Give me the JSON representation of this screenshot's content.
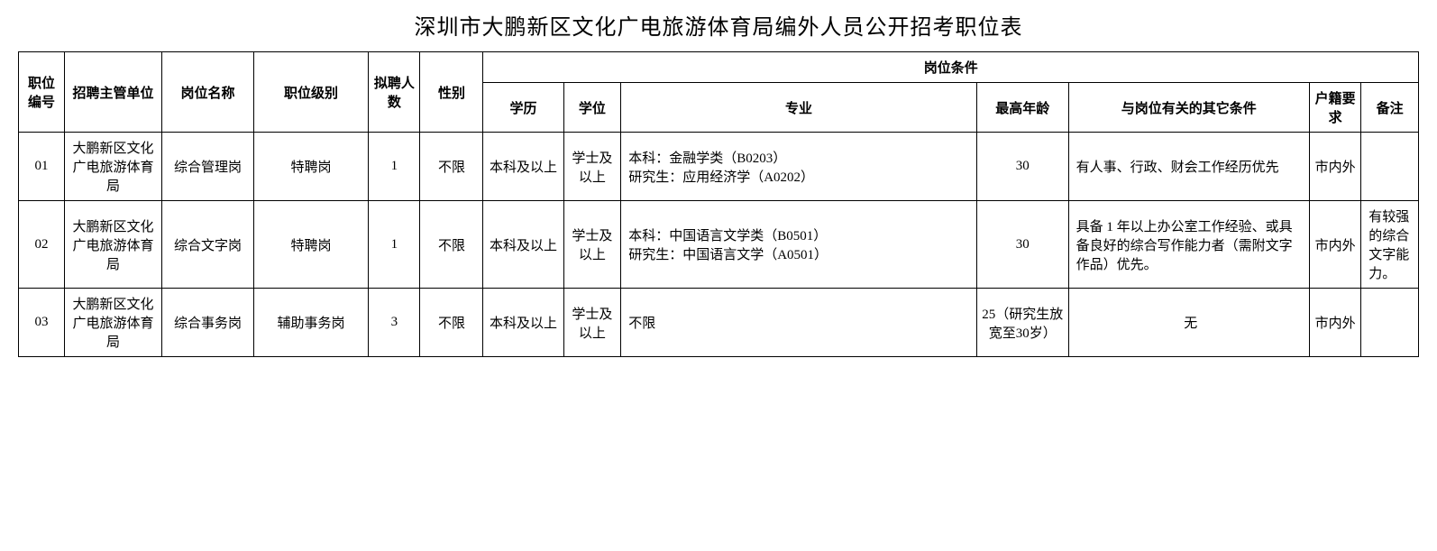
{
  "title": "深圳市大鹏新区文化广电旅游体育局编外人员公开招考职位表",
  "headers": {
    "id": "职位编号",
    "dept": "招聘主管单位",
    "pos": "岗位名称",
    "level": "职位级别",
    "count": "拟聘人数",
    "gender": "性别",
    "group": "岗位条件",
    "edu": "学历",
    "degree": "学位",
    "major": "专业",
    "age": "最高年龄",
    "other": "与岗位有关的其它条件",
    "huji": "户籍要求",
    "note": "备注"
  },
  "rows": [
    {
      "id": "01",
      "dept": "大鹏新区文化广电旅游体育局",
      "pos": "综合管理岗",
      "level": "特聘岗",
      "count": "1",
      "gender": "不限",
      "edu": "本科及以上",
      "degree": "学士及以上",
      "major": "本科：金融学类（B0203）\n研究生：应用经济学（A0202）",
      "age": "30",
      "other": "有人事、行政、财会工作经历优先",
      "huji": "市内外",
      "note": ""
    },
    {
      "id": "02",
      "dept": "大鹏新区文化广电旅游体育局",
      "pos": "综合文字岗",
      "level": "特聘岗",
      "count": "1",
      "gender": "不限",
      "edu": "本科及以上",
      "degree": "学士及以上",
      "major": "本科：中国语言文学类（B0501）\n研究生：中国语言文学（A0501）",
      "age": "30",
      "other": "具备 1 年以上办公室工作经验、或具备良好的综合写作能力者（需附文字作品）优先。",
      "huji": "市内外",
      "note": "有较强的综合文字能力。"
    },
    {
      "id": "03",
      "dept": "大鹏新区文化广电旅游体育局",
      "pos": "综合事务岗",
      "level": "辅助事务岗",
      "count": "3",
      "gender": "不限",
      "edu": "本科及以上",
      "degree": "学士及以上",
      "major": "不限",
      "age": "25（研究生放宽至30岁）",
      "other": "无",
      "huji": "市内外",
      "note": ""
    }
  ],
  "styling": {
    "title_fontsize": 24,
    "cell_fontsize": 15,
    "border_color": "#000000",
    "background_color": "#ffffff",
    "font_family": "SimSun"
  }
}
